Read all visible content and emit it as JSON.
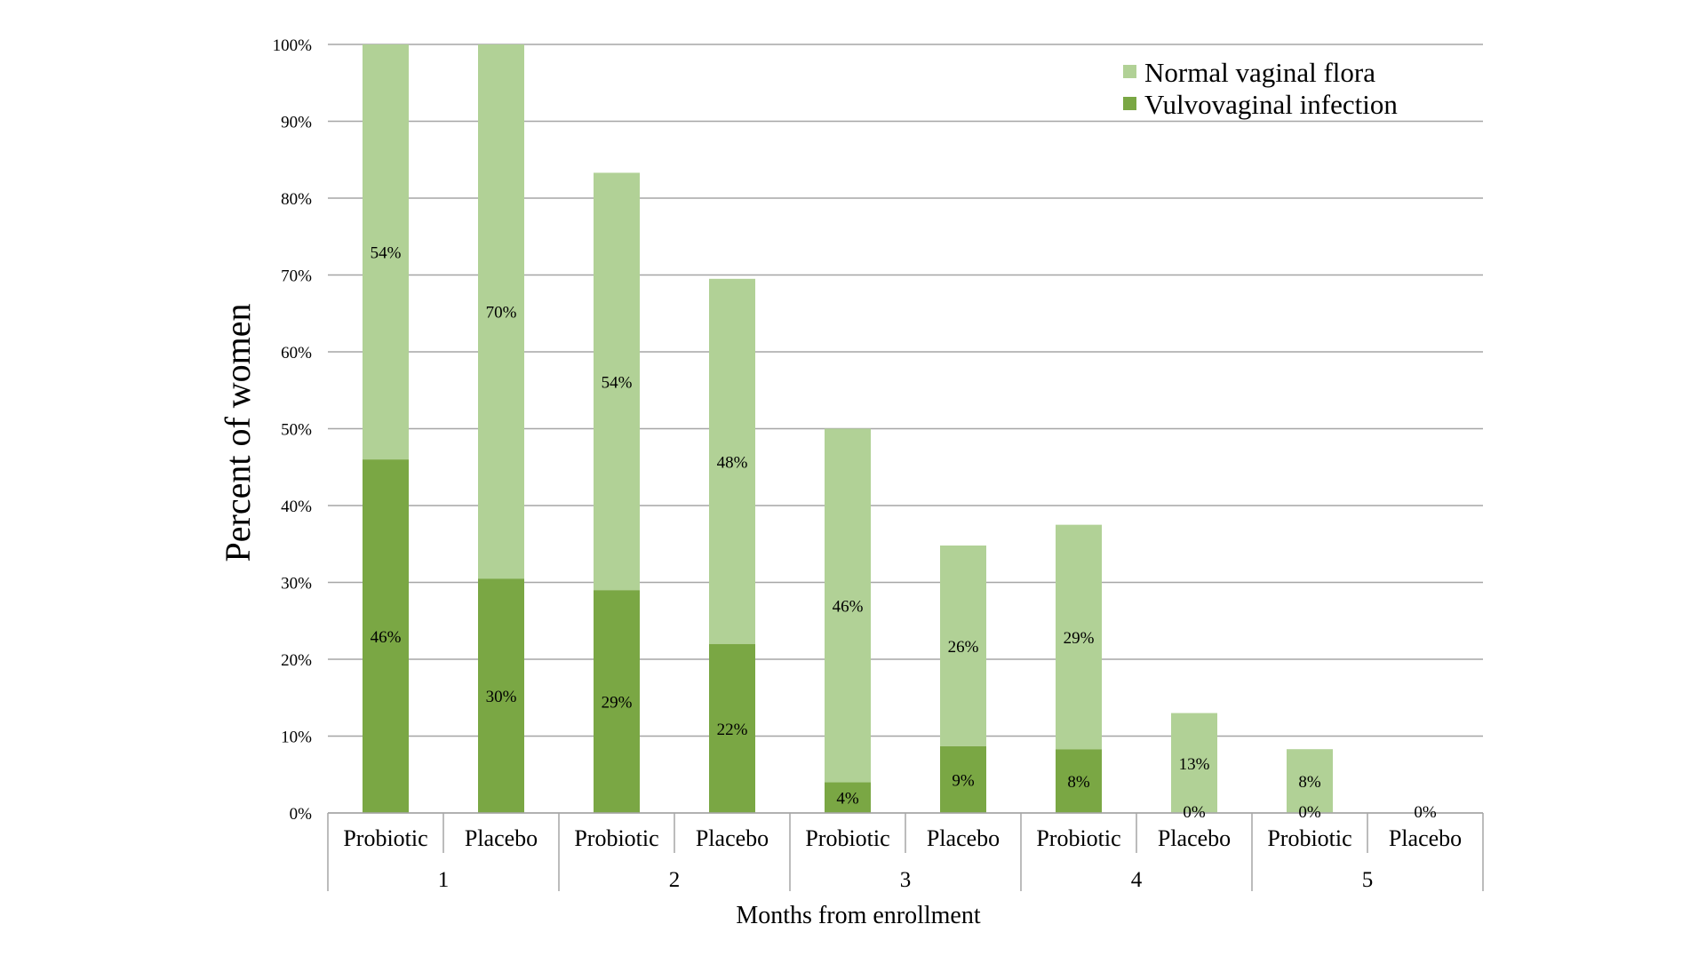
{
  "chart_data": {
    "type": "bar",
    "stacked": true,
    "title": "",
    "xlabel": "Months from enrollment",
    "ylabel": "Percent of women",
    "ylim": [
      0,
      100
    ],
    "yticks": [
      "0%",
      "10%",
      "20%",
      "30%",
      "40%",
      "50%",
      "60%",
      "70%",
      "80%",
      "90%",
      "100%"
    ],
    "grid": true,
    "legend_position": "top-right",
    "groups": [
      {
        "label": "1",
        "categories": [
          "Probiotic",
          "Placebo"
        ]
      },
      {
        "label": "2",
        "categories": [
          "Probiotic",
          "Placebo"
        ]
      },
      {
        "label": "3",
        "categories": [
          "Probiotic",
          "Placebo"
        ]
      },
      {
        "label": "4",
        "categories": [
          "Probiotic",
          "Placebo"
        ]
      },
      {
        "label": "5",
        "categories": [
          "Probiotic",
          "Placebo"
        ]
      }
    ],
    "categories": [
      "Probiotic",
      "Placebo",
      "Probiotic",
      "Placebo",
      "Probiotic",
      "Placebo",
      "Probiotic",
      "Placebo",
      "Probiotic",
      "Placebo"
    ],
    "series": [
      {
        "name": "Vulvovaginal infection",
        "color": "#7aa744",
        "values": [
          46,
          30.5,
          29,
          22,
          4,
          8.7,
          8.3,
          0,
          0,
          0
        ],
        "labels": [
          "46%",
          "30%",
          "29%",
          "22%",
          "4%",
          "9%",
          "8%",
          "0%",
          "0%",
          "0%"
        ]
      },
      {
        "name": "Normal vaginal flora",
        "color": "#b1d196",
        "values": [
          54,
          69.5,
          54.3,
          47.5,
          46,
          26.1,
          29.2,
          13,
          8.3,
          0
        ],
        "labels": [
          "54%",
          "70%",
          "54%",
          "48%",
          "46%",
          "26%",
          "29%",
          "13%",
          "8%",
          ""
        ]
      }
    ],
    "legend": [
      "Normal vaginal flora",
      "Vulvovaginal infection"
    ]
  }
}
